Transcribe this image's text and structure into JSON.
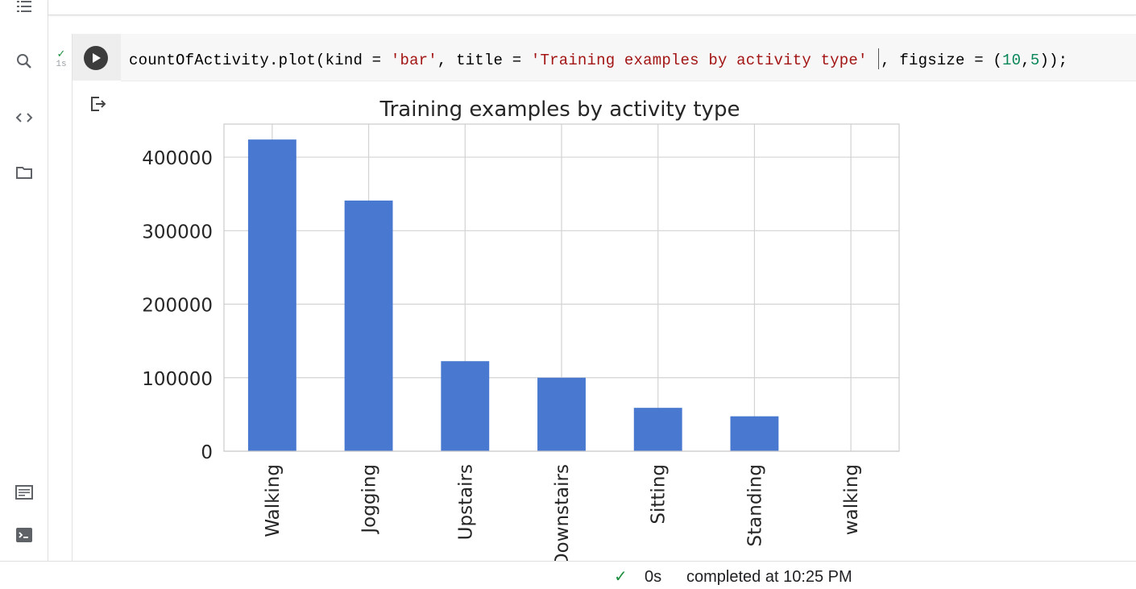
{
  "rail": {
    "icons": [
      "toc-icon",
      "search-icon",
      "code-snippets-icon",
      "folder-icon",
      "command-palette-icon",
      "terminal-icon"
    ]
  },
  "cell": {
    "exec_status": "✓",
    "exec_time": "1s",
    "code_tokens": [
      {
        "t": "countOfActivity.plot(kind = ",
        "c": "plain"
      },
      {
        "t": "'bar'",
        "c": "str"
      },
      {
        "t": ", title = ",
        "c": "plain"
      },
      {
        "t": "'Training examples by activity type'",
        "c": "str"
      },
      {
        "t": " ",
        "c": "plain"
      },
      {
        "t": "|",
        "c": "cursor"
      },
      {
        "t": ", figsize = (",
        "c": "plain"
      },
      {
        "t": "10",
        "c": "num"
      },
      {
        "t": ",",
        "c": "plain"
      },
      {
        "t": "5",
        "c": "num"
      },
      {
        "t": "));",
        "c": "plain"
      }
    ]
  },
  "chart_data": {
    "type": "bar",
    "title": "Training examples by activity type",
    "categories": [
      "Walking",
      "Jogging",
      "Upstairs",
      "Downstairs",
      "Sitting",
      "Standing",
      "walking"
    ],
    "values": [
      424000,
      341000,
      122500,
      100000,
      59000,
      47500,
      0
    ],
    "ylim": [
      0,
      445000
    ],
    "yticks": [
      0,
      100000,
      200000,
      300000,
      400000
    ],
    "ytick_labels": [
      "0",
      "100000",
      "200000",
      "300000",
      "400000"
    ],
    "grid": true,
    "bar_color": "#4878cf",
    "xlabel": "",
    "ylabel": ""
  },
  "status": {
    "check": "✓",
    "duration": "0s",
    "text": "completed at 10:25 PM"
  }
}
